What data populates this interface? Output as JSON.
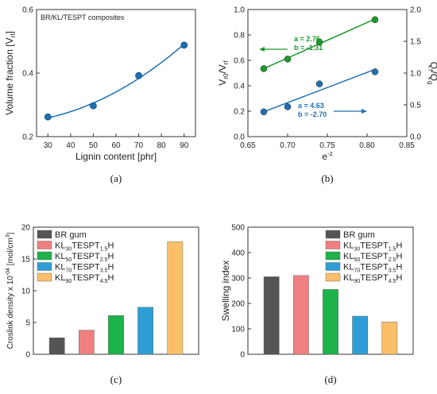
{
  "chart_data": [
    {
      "type": "scatter",
      "panel": "(a)",
      "annotation": "BR/KL/TESPT composites",
      "xlabel": "Lignin content [phr]",
      "ylabel_main": "Volume fraction [V",
      "ylabel_sub": "rf",
      "ylabel_end": "]",
      "xlim": [
        25,
        95
      ],
      "ylim": [
        0.2,
        0.6
      ],
      "xticks": [
        "30",
        "40",
        "50",
        "60",
        "70",
        "80",
        "90"
      ],
      "yticks": [
        "0.2",
        "0.4",
        "0.6"
      ],
      "x": [
        30,
        50,
        70,
        90
      ],
      "y": [
        0.262,
        0.297,
        0.392,
        0.488
      ],
      "color": "#1f6fb2"
    },
    {
      "type": "scatter",
      "panel": "(b)",
      "xlabel_main": "e",
      "xlabel_sup": "-z",
      "ylabel_left": "V_r0/V_rf",
      "ylabel_right": "Q_f/Q_g",
      "xlim": [
        0.65,
        0.85
      ],
      "ylim_left": [
        0.0,
        1.0
      ],
      "ylim_right": [
        0.0,
        2.0
      ],
      "xticks": [
        "0.65",
        "0.70",
        "0.75",
        "0.80",
        "0.85"
      ],
      "yticks_left": [
        "0.0",
        "0.2",
        "0.4",
        "0.6",
        "0.8",
        "1.0"
      ],
      "yticks_right": [
        "0.0",
        "0.5",
        "1.0",
        "1.5",
        "2.0"
      ],
      "series": [
        {
          "axis": "left",
          "color": "#1a9a2a",
          "x": [
            0.67,
            0.7,
            0.74,
            0.81
          ],
          "y": [
            0.535,
            0.61,
            0.745,
            0.92
          ],
          "fit_label_a": "a = 2.76",
          "fit_label_b": "b = -1.31"
        },
        {
          "axis": "right",
          "color": "#1f6fb2",
          "x": [
            0.67,
            0.7,
            0.74,
            0.81
          ],
          "y": [
            0.39,
            0.47,
            0.83,
            1.02
          ],
          "fit_label_a": "a = 4.63",
          "fit_label_b": "b = -2.70"
        }
      ]
    },
    {
      "type": "bar",
      "panel": "(c)",
      "ylabel": "Croslink density x 10",
      "ylabel_sup": "-04",
      "ylabel_end": " [mol/cm",
      "ylabel_sup2": "3",
      "ylabel_close": "]",
      "ylim": [
        0,
        20
      ],
      "yticks": [
        "0",
        "5",
        "10",
        "15",
        "20"
      ],
      "values": [
        2.6,
        3.8,
        6.1,
        7.4,
        17.7
      ]
    },
    {
      "type": "bar",
      "panel": "(d)",
      "ylabel": "Swelling index",
      "ylim": [
        0,
        500
      ],
      "yticks": [
        "0",
        "100",
        "200",
        "300",
        "400",
        "500"
      ],
      "values": [
        305,
        310,
        255,
        150,
        127
      ]
    }
  ],
  "legend": [
    {
      "pre": "BR gum",
      "sub": "",
      "mid": "",
      "sub2": "",
      "post": "",
      "color": "#555555"
    },
    {
      "pre": "KL",
      "sub": "30",
      "mid": "TESPT",
      "sub2": "1.5",
      "post": "H",
      "color": "#f08080"
    },
    {
      "pre": "KL",
      "sub": "50",
      "mid": "TESPT",
      "sub2": "2.5",
      "post": "H",
      "color": "#1db34a"
    },
    {
      "pre": "KL",
      "sub": "70",
      "mid": "TESPT",
      "sub2": "3.5",
      "post": "H",
      "color": "#2e9fd6"
    },
    {
      "pre": "KL",
      "sub": "90",
      "mid": "TESPT",
      "sub2": "4.5",
      "post": "H",
      "color": "#fbbf6a"
    }
  ],
  "captions": [
    "(a)",
    "(b)",
    "(c)",
    "(d)"
  ]
}
